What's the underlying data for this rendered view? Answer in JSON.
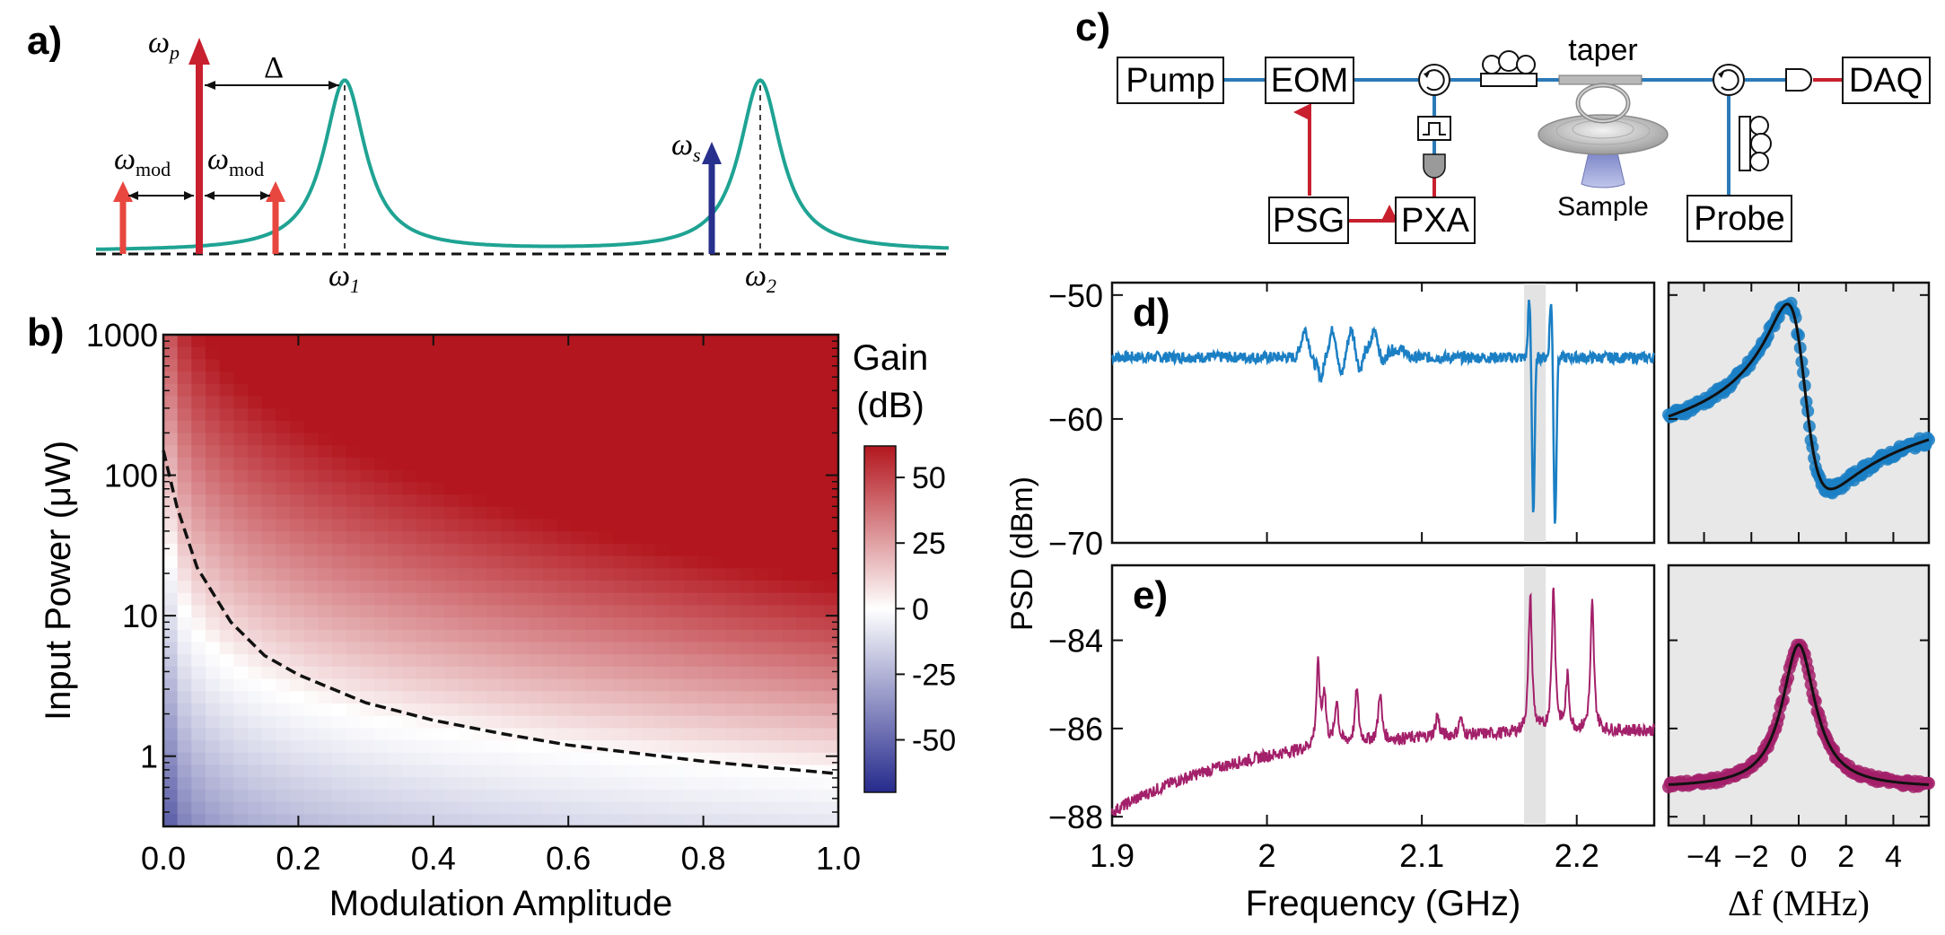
{
  "panels": {
    "a": "a)",
    "b": "b)",
    "c": "c)",
    "d": "d)",
    "e": "e)"
  },
  "panel_a": {
    "omega_p": "ω",
    "omega_p_sub": "p",
    "delta": "Δ",
    "omega_mod": "ω",
    "omega_mod_sub": "mod",
    "omega_s": "ω",
    "omega_s_sub": "s",
    "omega_1": "ω",
    "omega_1_sub": "1",
    "omega_2": "ω",
    "omega_2_sub": "2",
    "colors": {
      "pump": "#c8202f",
      "sidebands": "#e8473f",
      "signal": "#27308c",
      "resonance": "#1fa393"
    }
  },
  "panel_c": {
    "boxes": {
      "pump": "Pump",
      "eom": "EOM",
      "daq": "DAQ",
      "psg": "PSG",
      "pxa": "PXA",
      "probe": "Probe"
    },
    "taper": "taper",
    "sample": "Sample",
    "colors": {
      "fiber": "#2a7ab8",
      "electrical": "#c8202f"
    }
  },
  "chart_data": [
    {
      "id": "b",
      "type": "heatmap",
      "xlabel": "Modulation Amplitude",
      "ylabel": "Input Power (μW)",
      "x_ticks": [
        "0.0",
        "0.2",
        "0.4",
        "0.6",
        "0.8",
        "1.0"
      ],
      "y_ticks": [
        "1",
        "10",
        "100",
        "1000"
      ],
      "xlim": [
        0,
        1
      ],
      "ylim_log10": [
        -0.5,
        3
      ],
      "y_scale": "log",
      "colorbar": {
        "label_line1": "Gain",
        "label_line2": "(dB)",
        "ticks": [
          "50",
          "25",
          "0",
          "-25",
          "-50"
        ],
        "range": [
          -70,
          62
        ],
        "low_color": "#262a8c",
        "mid_color": "#ffffff",
        "high_color": "#b3161e"
      },
      "threshold_curve": {
        "x": [
          0.0,
          0.02,
          0.05,
          0.1,
          0.15,
          0.2,
          0.3,
          0.4,
          0.5,
          0.6,
          0.7,
          0.8,
          0.9,
          1.0
        ],
        "y": [
          150,
          60,
          22,
          9,
          5.2,
          3.8,
          2.4,
          1.8,
          1.45,
          1.2,
          1.05,
          0.92,
          0.83,
          0.75
        ]
      }
    },
    {
      "id": "d",
      "type": "line",
      "ylabel": "PSD (dBm)",
      "y_ticks": [
        "−50",
        "−60",
        "−70"
      ],
      "ylim": [
        -70,
        -49
      ],
      "xlim": [
        1.9,
        2.25
      ],
      "color": "#1b7fc4",
      "baseline": -55,
      "features": [
        {
          "x": 2.03,
          "depth": -2.5
        },
        {
          "x": 2.035,
          "depth": -2.2
        },
        {
          "x": 2.048,
          "depth": -2
        },
        {
          "x": 2.06,
          "depth": -1.5
        },
        {
          "x": 2.075,
          "depth": -1
        },
        {
          "x": 2.172,
          "depth": -12.5
        },
        {
          "x": 2.186,
          "depth": -13.5
        }
      ]
    },
    {
      "id": "e",
      "type": "line",
      "xlabel": "Frequency (GHz)",
      "x_ticks": [
        "1.9",
        "2",
        "2.1",
        "2.2"
      ],
      "y_ticks": [
        "−84",
        "−86",
        "−88"
      ],
      "ylim": [
        -88.2,
        -82.3
      ],
      "xlim": [
        1.9,
        2.25
      ],
      "color": "#a3206a",
      "peaks": [
        {
          "x": 2.033,
          "height": 1.8
        },
        {
          "x": 2.037,
          "height": 1.2
        },
        {
          "x": 2.045,
          "height": 1.0
        },
        {
          "x": 2.058,
          "height": 1.2
        },
        {
          "x": 2.073,
          "height": 1.1
        },
        {
          "x": 2.11,
          "height": 0.5
        },
        {
          "x": 2.125,
          "height": 0.4
        },
        {
          "x": 2.17,
          "height": 3.1
        },
        {
          "x": 2.185,
          "height": 3.3
        },
        {
          "x": 2.194,
          "height": 1.2
        },
        {
          "x": 2.21,
          "height": 2.9
        }
      ],
      "highlight_x": [
        2.166,
        2.18
      ]
    },
    {
      "id": "d-zoom",
      "type": "scatter",
      "ylim": [
        -70,
        -49
      ],
      "xlim": [
        -5.5,
        5.5
      ],
      "color": "#1b7fc4",
      "fit_color": "#111111"
    },
    {
      "id": "e-zoom",
      "type": "scatter",
      "xlabel": "Δf (MHz)",
      "x_ticks": [
        "−4",
        "−2",
        "0",
        "2",
        "4"
      ],
      "ylim": [
        -88.2,
        -82.3
      ],
      "xlim": [
        -5.5,
        5.5
      ],
      "color": "#a3206a",
      "fit_color": "#111111"
    }
  ]
}
